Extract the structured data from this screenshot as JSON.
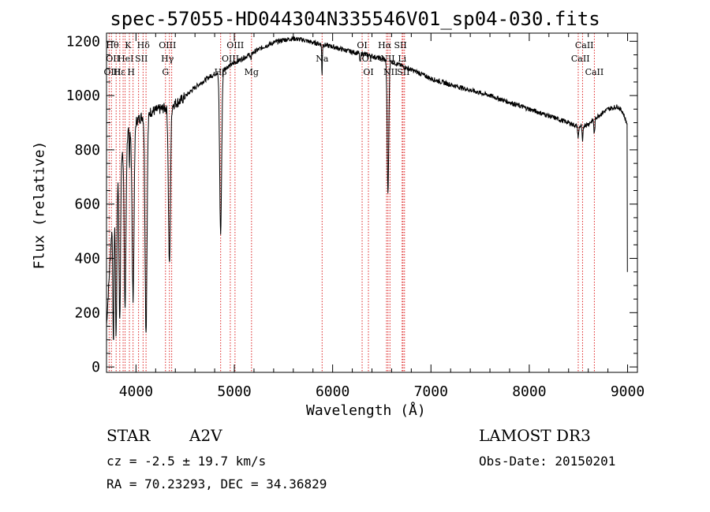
{
  "chart_data": {
    "type": "line",
    "title": "spec-57055-HD044304N335546V01_sp04-030.fits",
    "xlabel": "Wavelength (Å)",
    "ylabel": "Flux (relative)",
    "xlim": [
      3700,
      9100
    ],
    "ylim": [
      -20,
      1230
    ],
    "x_ticks": [
      4000,
      5000,
      6000,
      7000,
      8000,
      9000
    ],
    "y_ticks": [
      0,
      200,
      400,
      600,
      800,
      1000,
      1200
    ],
    "continuum": [
      [
        3700,
        150
      ],
      [
        3760,
        550
      ],
      [
        3820,
        740
      ],
      [
        3880,
        830
      ],
      [
        3950,
        890
      ],
      [
        4050,
        920
      ],
      [
        4150,
        940
      ],
      [
        4300,
        955
      ],
      [
        4450,
        980
      ],
      [
        4600,
        1030
      ],
      [
        4750,
        1070
      ],
      [
        4900,
        1100
      ],
      [
        5000,
        1120
      ],
      [
        5100,
        1140
      ],
      [
        5200,
        1160
      ],
      [
        5300,
        1180
      ],
      [
        5400,
        1195
      ],
      [
        5500,
        1205
      ],
      [
        5600,
        1210
      ],
      [
        5700,
        1205
      ],
      [
        5800,
        1195
      ],
      [
        5900,
        1188
      ],
      [
        6000,
        1180
      ],
      [
        6100,
        1170
      ],
      [
        6200,
        1160
      ],
      [
        6300,
        1155
      ],
      [
        6400,
        1145
      ],
      [
        6500,
        1135
      ],
      [
        6600,
        1125
      ],
      [
        6700,
        1110
      ],
      [
        6800,
        1095
      ],
      [
        6900,
        1080
      ],
      [
        7000,
        1062
      ],
      [
        7200,
        1040
      ],
      [
        7400,
        1020
      ],
      [
        7600,
        1000
      ],
      [
        7800,
        975
      ],
      [
        8000,
        950
      ],
      [
        8200,
        925
      ],
      [
        8400,
        900
      ],
      [
        8500,
        885
      ],
      [
        8600,
        895
      ],
      [
        8700,
        925
      ],
      [
        8800,
        950
      ],
      [
        8900,
        960
      ],
      [
        8950,
        940
      ],
      [
        8990,
        900
      ]
    ],
    "absorption_lines": [
      {
        "center": 3770,
        "depth": 500,
        "width": 6
      },
      {
        "center": 3798,
        "depth": 560,
        "width": 7
      },
      {
        "center": 3835,
        "depth": 600,
        "width": 8
      },
      {
        "center": 3889,
        "depth": 620,
        "width": 9
      },
      {
        "center": 3933,
        "depth": 160,
        "width": 3
      },
      {
        "center": 3970,
        "depth": 640,
        "width": 10
      },
      {
        "center": 4102,
        "depth": 800,
        "width": 10
      },
      {
        "center": 4340,
        "depth": 590,
        "width": 10
      },
      {
        "center": 4861,
        "depth": 600,
        "width": 10
      },
      {
        "center": 5170,
        "depth": 25,
        "width": 4
      },
      {
        "center": 5892,
        "depth": 120,
        "width": 3
      },
      {
        "center": 6280,
        "depth": 35,
        "width": 5
      },
      {
        "center": 6563,
        "depth": 490,
        "width": 8
      },
      {
        "center": 8498,
        "depth": 40,
        "width": 5
      },
      {
        "center": 8542,
        "depth": 60,
        "width": 5
      },
      {
        "center": 8662,
        "depth": 55,
        "width": 5
      }
    ],
    "line_markers": [
      3727,
      3750,
      3798,
      3835,
      3869,
      3889,
      3933,
      3970,
      4026,
      4072,
      4102,
      4300,
      4340,
      4363,
      4861,
      4959,
      5007,
      5175,
      5893,
      6300,
      6364,
      6548,
      6563,
      6583,
      6707,
      6716,
      6731,
      8498,
      8542,
      8662
    ],
    "line_labels": [
      {
        "text": "Hθ",
        "x": 3760,
        "row": 0
      },
      {
        "text": "K",
        "x": 3920,
        "row": 0
      },
      {
        "text": "Hδ",
        "x": 4075,
        "row": 0
      },
      {
        "text": "OIII",
        "x": 4320,
        "row": 0
      },
      {
        "text": "OIII",
        "x": 5010,
        "row": 0
      },
      {
        "text": "OI",
        "x": 6300,
        "row": 0
      },
      {
        "text": "Hα",
        "x": 6530,
        "row": 0
      },
      {
        "text": "SII",
        "x": 6690,
        "row": 0
      },
      {
        "text": "CaII",
        "x": 8560,
        "row": 0
      },
      {
        "text": "OII",
        "x": 3765,
        "row": 1
      },
      {
        "text": "HeI",
        "x": 3895,
        "row": 1
      },
      {
        "text": "SII",
        "x": 4055,
        "row": 1
      },
      {
        "text": "Hγ",
        "x": 4320,
        "row": 1
      },
      {
        "text": "OIII",
        "x": 4960,
        "row": 1
      },
      {
        "text": "Na",
        "x": 5893,
        "row": 1
      },
      {
        "text": "OI",
        "x": 6350,
        "row": 1
      },
      {
        "text": "NII",
        "x": 6560,
        "row": 1
      },
      {
        "text": "Li",
        "x": 6707,
        "row": 1
      },
      {
        "text": "CaII",
        "x": 8520,
        "row": 1
      },
      {
        "text": "OIII",
        "x": 3760,
        "row": 2
      },
      {
        "text": "Hε",
        "x": 3830,
        "row": 2
      },
      {
        "text": "H",
        "x": 3950,
        "row": 2
      },
      {
        "text": "G",
        "x": 4300,
        "row": 2
      },
      {
        "text": "Hβ",
        "x": 4860,
        "row": 2
      },
      {
        "text": "Mg",
        "x": 5175,
        "row": 2
      },
      {
        "text": "OI",
        "x": 6364,
        "row": 2
      },
      {
        "text": "NII",
        "x": 6590,
        "row": 2
      },
      {
        "text": "SII",
        "x": 6720,
        "row": 2
      },
      {
        "text": "CaII",
        "x": 8662,
        "row": 2
      }
    ]
  },
  "info": {
    "object_type": "STAR",
    "subclass": "A2V",
    "survey": "LAMOST DR3",
    "cz": "cz = -2.5 ± 19.7 km/s",
    "obs_date": "Obs-Date: 20150201",
    "coords": "RA =  70.23293, DEC =  34.36829"
  }
}
